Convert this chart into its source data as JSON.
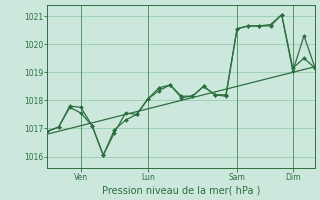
{
  "bg_color": "#cce8dc",
  "grid_color": "#99ccb3",
  "line_color": "#2d6e3e",
  "xlabel": "Pression niveau de la mer( hPa )",
  "ylim": [
    1015.6,
    1021.4
  ],
  "yticks": [
    1016,
    1017,
    1018,
    1019,
    1020,
    1021
  ],
  "xlim": [
    0,
    144
  ],
  "xtick_positions": [
    18,
    54,
    102,
    132
  ],
  "xtick_labels": [
    "Ven",
    "Lun",
    "Sam",
    "Dim"
  ],
  "vline_positions": [
    18,
    54,
    102,
    132
  ],
  "trend_line": {
    "x": [
      0,
      144
    ],
    "y": [
      1016.8,
      1019.2
    ]
  },
  "line2": {
    "x": [
      0,
      6,
      12,
      18,
      24,
      30,
      36,
      42,
      48,
      54,
      60,
      66,
      72,
      78,
      84,
      90,
      96,
      102,
      108,
      114,
      120,
      126,
      132,
      138,
      144
    ],
    "y": [
      1016.9,
      1017.05,
      1017.8,
      1017.75,
      1017.1,
      1016.05,
      1016.95,
      1017.3,
      1017.5,
      1018.05,
      1018.45,
      1018.55,
      1018.15,
      1018.15,
      1018.5,
      1018.2,
      1018.15,
      1020.55,
      1020.65,
      1020.65,
      1020.7,
      1021.05,
      1019.15,
      1019.5,
      1019.15
    ]
  },
  "line3": {
    "x": [
      0,
      6,
      12,
      18,
      24,
      30,
      36,
      42,
      48,
      54,
      60,
      66,
      72,
      78,
      84,
      90,
      96,
      102,
      108,
      114,
      120,
      126,
      132,
      138,
      144
    ],
    "y": [
      1016.9,
      1017.05,
      1017.75,
      1017.55,
      1017.1,
      1016.05,
      1016.85,
      1017.55,
      1017.5,
      1018.05,
      1018.35,
      1018.55,
      1018.1,
      1018.15,
      1018.5,
      1018.2,
      1018.2,
      1020.55,
      1020.65,
      1020.65,
      1020.65,
      1021.05,
      1019.05,
      1020.3,
      1019.15
    ]
  }
}
